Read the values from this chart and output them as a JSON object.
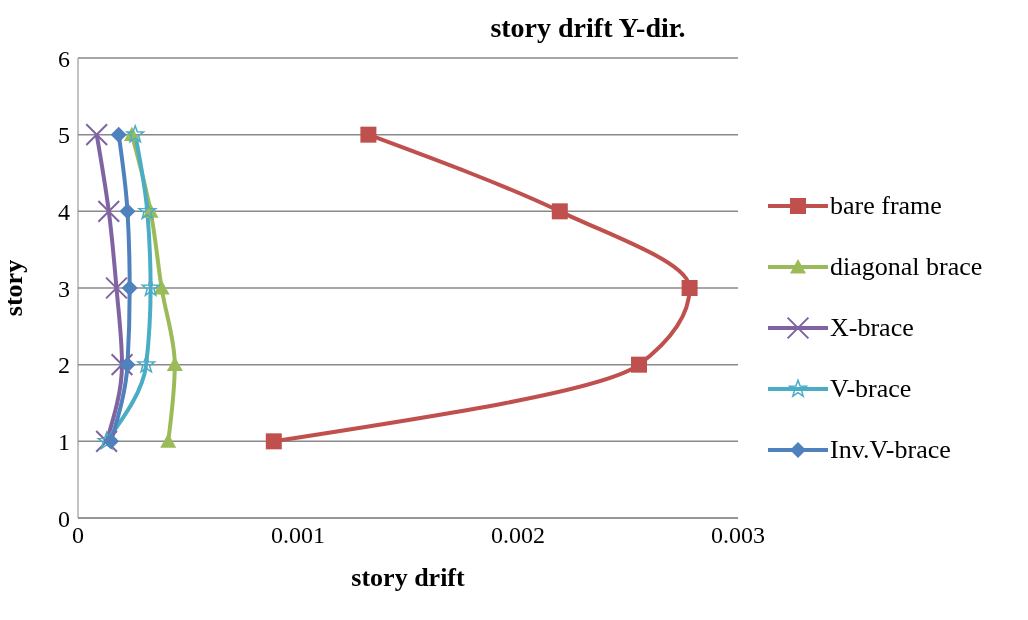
{
  "chart_data": {
    "type": "line",
    "title": "story drift Y-dir.",
    "xlabel": "story drift",
    "ylabel": "story",
    "xlim": [
      0,
      0.003
    ],
    "xticks": [
      0,
      0.001,
      0.002,
      0.003
    ],
    "ylim": [
      0,
      6
    ],
    "yticks": [
      0,
      1,
      2,
      3,
      4,
      5,
      6
    ],
    "grid": "y",
    "legend": "right",
    "series": [
      {
        "name": "bare frame",
        "color": "#c0504d",
        "marker": "square",
        "x": [
          0.00089,
          0.00255,
          0.00278,
          0.00219,
          0.00132
        ],
        "values": [
          1,
          2,
          3,
          4,
          5
        ]
      },
      {
        "name": "diagonal brace",
        "color": "#9bbb59",
        "marker": "triangle",
        "x": [
          0.00041,
          0.00044,
          0.00038,
          0.00033,
          0.000245
        ],
        "values": [
          1,
          2,
          3,
          4,
          5
        ]
      },
      {
        "name": "X-brace",
        "color": "#8064a2",
        "marker": "cross",
        "x": [
          0.00013,
          0.0002,
          0.000175,
          0.00014,
          8.5e-05
        ],
        "values": [
          1,
          2,
          3,
          4,
          5
        ]
      },
      {
        "name": "V-brace",
        "color": "#4bacc6",
        "marker": "star",
        "x": [
          0.00013,
          0.00031,
          0.00033,
          0.000315,
          0.00026
        ],
        "values": [
          1,
          2,
          3,
          4,
          5
        ]
      },
      {
        "name": "Inv.V-brace",
        "color": "#4f81bd",
        "marker": "diamond",
        "x": [
          0.00015,
          0.000225,
          0.000235,
          0.000225,
          0.000185
        ],
        "values": [
          1,
          2,
          3,
          4,
          5
        ]
      }
    ]
  }
}
